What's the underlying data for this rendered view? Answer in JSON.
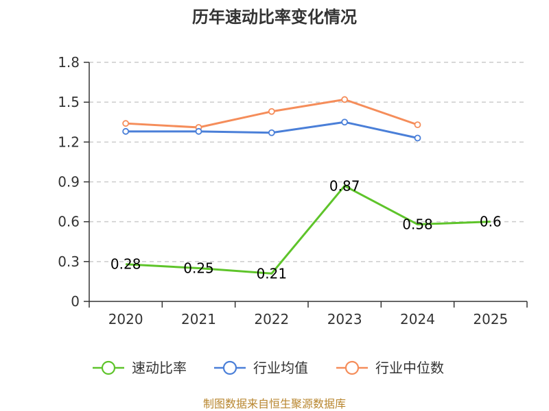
{
  "chart_data": {
    "type": "line",
    "title": "历年速动比率变化情况",
    "categories": [
      "2020",
      "2021",
      "2022",
      "2023",
      "2024",
      "2025"
    ],
    "ylim": [
      0,
      1.8
    ],
    "yticks": [
      "0",
      "0.3",
      "0.6",
      "0.9",
      "1.2",
      "1.5",
      "1.8"
    ],
    "grid": true,
    "legend_position": "bottom",
    "series": [
      {
        "name": "速动比率",
        "color": "#5ec42a",
        "values": [
          0.28,
          0.25,
          0.21,
          0.87,
          0.58,
          0.6
        ],
        "labels": [
          "0.28",
          "0.25",
          "0.21",
          "0.87",
          "0.58",
          "0.6"
        ]
      },
      {
        "name": "行业均值",
        "color": "#4a7fd8",
        "values": [
          1.28,
          1.28,
          1.27,
          1.35,
          1.23,
          null
        ]
      },
      {
        "name": "行业中位数",
        "color": "#f58d5a",
        "values": [
          1.34,
          1.31,
          1.43,
          1.52,
          1.33,
          null
        ]
      }
    ],
    "source": "制图数据来自恒生聚源数据库"
  }
}
